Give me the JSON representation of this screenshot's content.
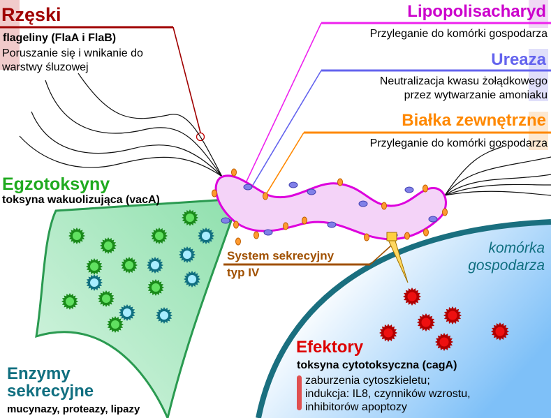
{
  "flagella": {
    "title": "Rzęski",
    "subtitle": "flageliny (FlaA i FlaB)",
    "desc": [
      "Poruszanie się i wnikanie do",
      "warstwy śluzowej"
    ],
    "color": "#a00000"
  },
  "lps": {
    "title": "Lipopolisacharyd",
    "desc": [
      "Przyleganie do komórki gospodarza"
    ],
    "color": "#cc00cc"
  },
  "urease": {
    "title": "Ureaza",
    "desc": [
      "Neutralizacja kwasu żołądkowego",
      "przez wytwarzanie amoniaku"
    ],
    "color": "#6464ee"
  },
  "outer_proteins": {
    "title": "Białka zewnętrzne",
    "desc": [
      "Przyleganie do komórki gospodarza"
    ],
    "color": "#ff8800"
  },
  "exotoxins": {
    "title": "Egzotoksyny",
    "subtitle": "toksyna wakuolizująca (vacA)",
    "color": "#1faa1f"
  },
  "enzymes": {
    "title": [
      "Enzymy",
      "sekrecyjne"
    ],
    "subtitle": "mucynazy, proteazy, lipazy",
    "color": "#106f80"
  },
  "secretion": {
    "title": [
      "System sekrecyjny",
      "typ IV"
    ],
    "color": "#a05000"
  },
  "host_cell": {
    "label": [
      "komórka",
      "gospodarza"
    ],
    "color": "#106f80"
  },
  "effectors": {
    "title": "Efektory",
    "subtitle": "toksyna cytotoksyczna (cagA)",
    "desc": [
      "zaburzenia cytoszkieletu;",
      "indukcja: IL8, czynników wzrostu,",
      "inhibitorów apoptozy"
    ],
    "color": "#dd0000"
  }
}
